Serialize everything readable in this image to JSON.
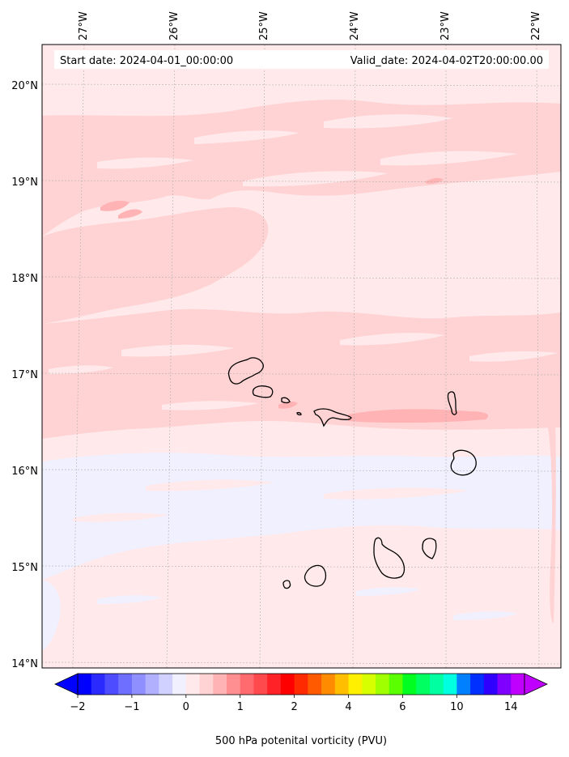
{
  "map": {
    "start_date": "Start date: 2024-04-01_00:00:00",
    "valid_date": "Valid_date: 2024-04-02T20:00:00.00",
    "lon_labels": [
      "27°W",
      "26°W",
      "25°W",
      "24°W",
      "23°W",
      "22°W"
    ],
    "lat_labels": [
      "20°N",
      "19°N",
      "18°N",
      "17°N",
      "16°N",
      "15°N",
      "14°N"
    ],
    "extent": {
      "lon_min": -27.33,
      "lon_max": -21.8,
      "lat_min": 13.95,
      "lat_max": 20.42
    },
    "field_colors": {
      "very_light_pink": "#ffe9ea",
      "light_pink": "#ffd2d3",
      "pink": "#ffb3b5",
      "light_blue": "#f0f0ff"
    },
    "islands": [
      "Santo Antão",
      "São Vicente",
      "Santa Luzia",
      "São Nicolau",
      "Sal",
      "Boa Vista",
      "Maio",
      "Santiago",
      "Fogo",
      "Brava"
    ]
  },
  "colorbar": {
    "tick_labels": [
      "−2",
      "−1",
      "0",
      "1",
      "2",
      "4",
      "6",
      "10",
      "14"
    ],
    "label": "500 hPa potenital vorticity (PVU)",
    "colors": [
      "#0000ff",
      "#2a2aff",
      "#4d4dff",
      "#6e6eff",
      "#8f8fff",
      "#b0b0ff",
      "#d1d1ff",
      "#f0f0ff",
      "#ffe9ea",
      "#ffd2d3",
      "#ffb3b5",
      "#ff8f91",
      "#ff6b6e",
      "#ff4a4d",
      "#ff2226",
      "#ff0000",
      "#ff2a00",
      "#ff5a00",
      "#ff8c00",
      "#ffbe00",
      "#fff000",
      "#d7ff00",
      "#a0ff00",
      "#5aff00",
      "#00ff20",
      "#00ff60",
      "#00ffa0",
      "#00ffe0",
      "#0080ff",
      "#0030ff",
      "#3000ff",
      "#8000ff",
      "#c000ff"
    ]
  }
}
